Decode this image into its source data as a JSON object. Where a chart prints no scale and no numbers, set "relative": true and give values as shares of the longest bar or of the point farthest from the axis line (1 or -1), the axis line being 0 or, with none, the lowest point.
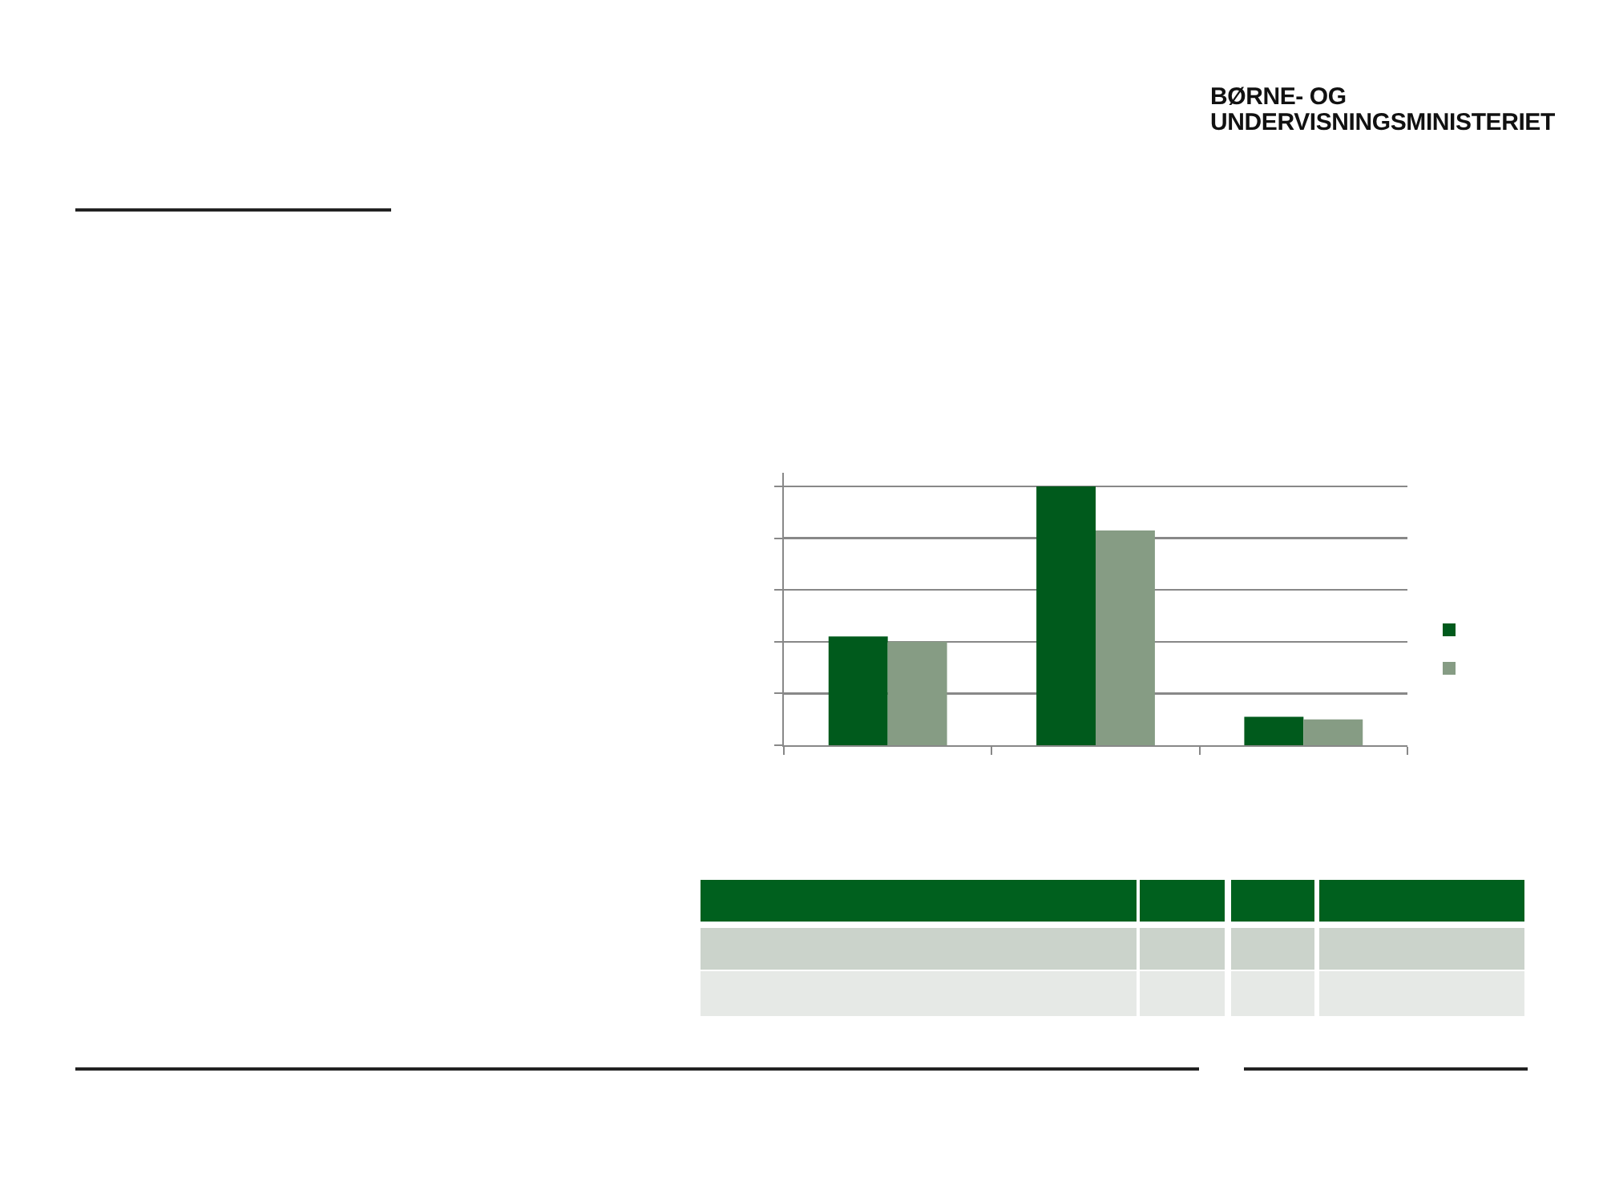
{
  "chart_data": {
    "type": "bar",
    "relative": true,
    "categories": [
      null,
      null,
      null
    ],
    "series": [
      {
        "color": "#005a1c",
        "values": [
          0.42,
          1,
          0.11
        ]
      },
      {
        "color": "#869c84",
        "values": [
          0.4,
          0.83,
          0.1
        ]
      }
    ],
    "grid": "y",
    "annotations": [
      "BØRNE- OG",
      "UNDERVISNINGSMINISTERIET"
    ]
  }
}
